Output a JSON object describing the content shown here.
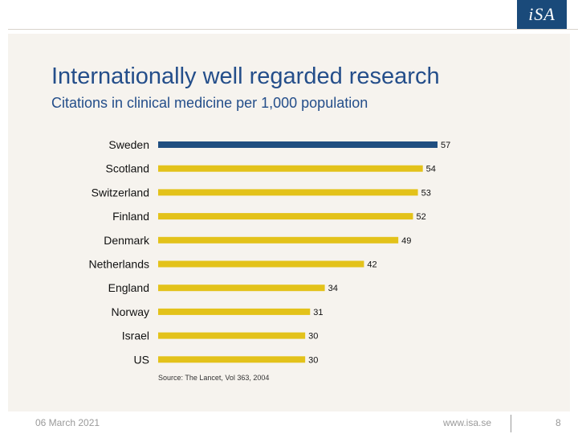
{
  "logo": {
    "text": "iSA"
  },
  "slide": {
    "title": "Internationally well regarded research",
    "subtitle": "Citations in clinical medicine per 1,000 population",
    "source": "Source: The Lancet, Vol 363, 2004"
  },
  "footer": {
    "date": "06 March 2021",
    "url": "www.isa.se",
    "page": "8"
  },
  "colors": {
    "highlight": "#1f4e80",
    "bar": "#e3c21a"
  },
  "chart_data": {
    "type": "bar",
    "orientation": "horizontal",
    "categories": [
      "Sweden",
      "Scotland",
      "Switzerland",
      "Finland",
      "Denmark",
      "Netherlands",
      "England",
      "Norway",
      "Israel",
      "US"
    ],
    "values": [
      57,
      54,
      53,
      52,
      49,
      42,
      34,
      31,
      30,
      30
    ],
    "highlighted_category": "Sweden",
    "grid": false
  }
}
